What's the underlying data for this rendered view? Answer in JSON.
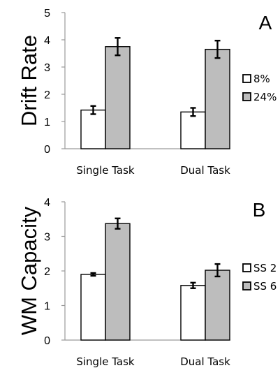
{
  "colors": {
    "series_1": "#ffffff",
    "series_2": "#bdbdbd",
    "stroke": "#000000"
  },
  "chart_data": [
    {
      "type": "bar",
      "panel_label": "A",
      "ylabel": "Drift Rate",
      "categories": [
        "Single Task",
        "Dual Task"
      ],
      "ylim": [
        0,
        5
      ],
      "yticks": [
        0,
        1,
        2,
        3,
        4,
        5
      ],
      "grid": false,
      "legend_position": "right",
      "series": [
        {
          "name": "8%",
          "values": [
            1.42,
            1.35
          ],
          "errors": [
            0.15,
            0.15
          ]
        },
        {
          "name": "24%",
          "values": [
            3.75,
            3.65
          ],
          "errors": [
            0.32,
            0.32
          ]
        }
      ]
    },
    {
      "type": "bar",
      "panel_label": "B",
      "ylabel": "WM Capacity",
      "categories": [
        "Single Task",
        "Dual Task"
      ],
      "ylim": [
        0,
        4
      ],
      "yticks": [
        0,
        1,
        2,
        3,
        4
      ],
      "grid": false,
      "legend_position": "right",
      "series": [
        {
          "name": "SS 2",
          "values": [
            1.9,
            1.58
          ],
          "errors": [
            0.04,
            0.08
          ]
        },
        {
          "name": "SS 6",
          "values": [
            3.37,
            2.02
          ],
          "errors": [
            0.15,
            0.18
          ]
        }
      ]
    }
  ]
}
